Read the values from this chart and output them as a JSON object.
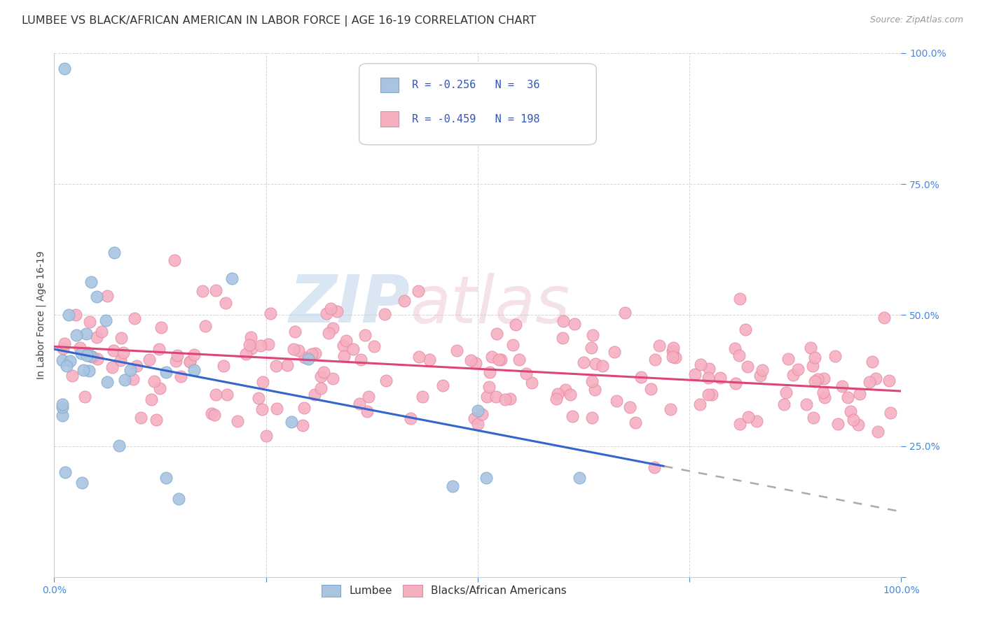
{
  "title": "LUMBEE VS BLACK/AFRICAN AMERICAN IN LABOR FORCE | AGE 16-19 CORRELATION CHART",
  "source": "Source: ZipAtlas.com",
  "ylabel": "In Labor Force | Age 16-19",
  "watermark_zip": "ZIP",
  "watermark_atlas": "atlas",
  "legend_line1": "R = -0.256   N =  36",
  "legend_line2": "R = -0.459   N = 198",
  "lumbee_color": "#aac4e0",
  "lumbee_edge": "#7aaad0",
  "black_color": "#f5b0c0",
  "black_edge": "#e888a8",
  "trend_lumbee_color": "#3366cc",
  "trend_black_color": "#dd4477",
  "trend_lumbee_dashed_color": "#aaaaaa",
  "tick_color": "#4488dd",
  "background_color": "#ffffff",
  "grid_color": "#cccccc",
  "title_fontsize": 11.5,
  "label_fontsize": 10,
  "tick_fontsize": 10,
  "legend_fontsize": 11,
  "bottom_legend": [
    "Lumbee",
    "Blacks/African Americans"
  ],
  "lumbee_intercept": 0.435,
  "lumbee_slope": -0.31,
  "black_intercept": 0.44,
  "black_slope": -0.085
}
